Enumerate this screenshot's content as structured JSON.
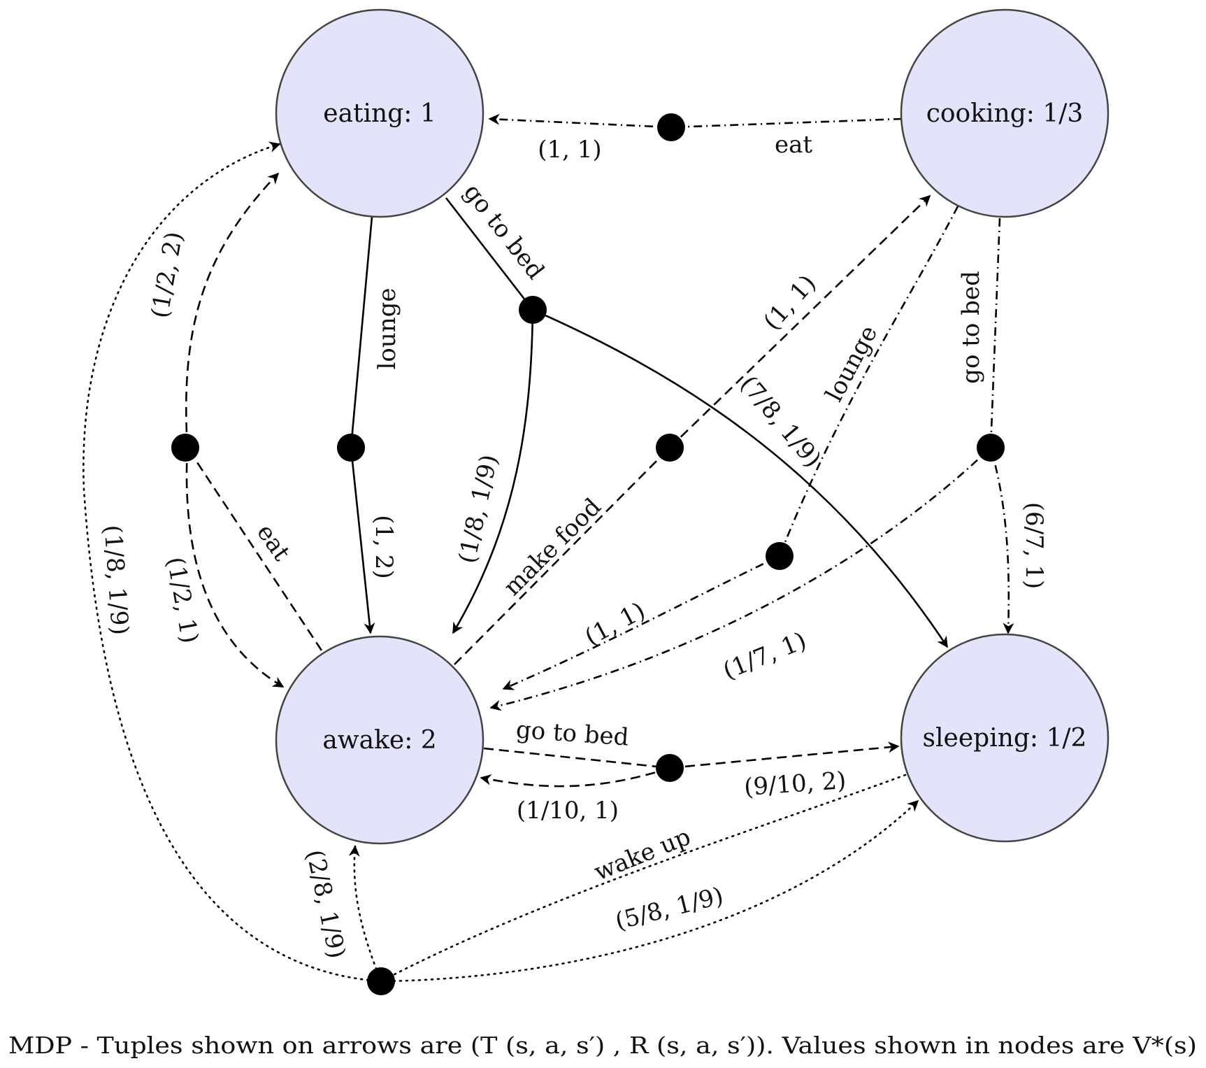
{
  "states": {
    "eating": "eating: 1",
    "cooking": "cooking: 1/3",
    "awake": "awake: 2",
    "sleeping": "sleeping: 1/2"
  },
  "actions": {
    "eating_lounge": "lounge",
    "eating_go_to_bed": "go to bed",
    "cooking_eat": "eat",
    "cooking_lounge": "lounge",
    "cooking_go_to_bed": "go to bed",
    "awake_eat": "eat",
    "awake_make_food": "make food",
    "awake_go_to_bed": "go to bed",
    "sleeping_wake_up": "wake up"
  },
  "tuples": {
    "eating_lounge_to_awake": "(1, 2)",
    "eating_bed_to_awake": "(1/8, 1/9)",
    "eating_bed_to_sleeping": "(7/8, 1/9)",
    "cooking_eat_to_eating": "(1, 1)",
    "cooking_lounge_to_awake": "(1, 1)",
    "cooking_bed_to_awake": "(1/7, 1)",
    "cooking_bed_to_sleeping": "(6/7, 1)",
    "awake_eat_to_eating": "(1/2, 2)",
    "awake_eat_to_awake": "(1/2, 1)",
    "awake_food_to_cooking": "(1, 1)",
    "awake_bed_to_sleeping": "(9/10, 2)",
    "awake_bed_to_awake": "(1/10, 1)",
    "sleeping_wake_to_eating": "(1/8, 1/9)",
    "sleeping_wake_to_awake": "(2/8, 1/9)",
    "sleeping_wake_to_sleeping": "(5/8, 1/9)"
  },
  "caption": "MDP - Tuples shown on arrows are (T (s, a, s′) , R (s, a, s′)). Values shown in nodes are V*(s)"
}
